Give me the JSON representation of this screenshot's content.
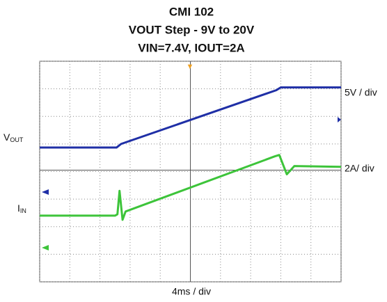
{
  "chart_data": {
    "type": "line",
    "title": [
      "CMI 102",
      "VOUT Step - 9V to 20V",
      "VIN=7.4V, IOUT=2A"
    ],
    "xlim": [
      0,
      10
    ],
    "ylim": [
      0,
      8
    ],
    "xticks": [
      0,
      1,
      2,
      3,
      4,
      5,
      6,
      7,
      8,
      9,
      10
    ],
    "yticks": [
      0,
      1,
      2,
      3,
      4,
      5,
      6,
      7,
      8
    ],
    "grid": true,
    "x_scale_label": "4ms / div",
    "series": [
      {
        "name": {
          "main": "V",
          "sub": "OUT"
        },
        "scale_label": "5V / div",
        "color": "#1f2fa6",
        "x": [
          0,
          2.55,
          2.7,
          7.85,
          8.0,
          10
        ],
        "values": [
          4.87,
          4.87,
          5.0,
          6.95,
          7.05,
          7.05
        ]
      },
      {
        "name": {
          "main": "I",
          "sub": "IN"
        },
        "scale_label": "2A/ div",
        "color": "#3dc43a",
        "x": [
          0,
          2.5,
          2.58,
          2.65,
          2.75,
          2.85,
          7.8,
          7.95,
          8.2,
          8.45,
          10
        ],
        "values": [
          2.4,
          2.4,
          2.45,
          3.3,
          2.25,
          2.55,
          4.55,
          4.6,
          3.9,
          4.2,
          4.17
        ]
      }
    ]
  }
}
